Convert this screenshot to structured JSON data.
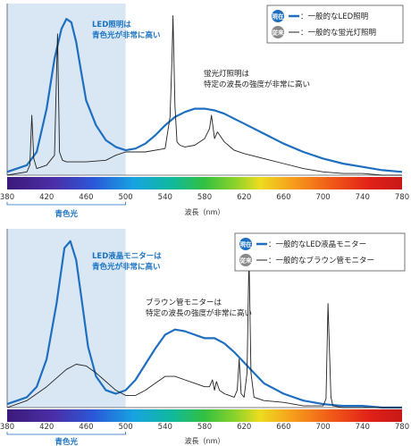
{
  "colors": {
    "led": "#1f6fc0",
    "other": "#222222",
    "band": "#d9e7f5",
    "badge_current": "#1f6fc0",
    "badge_prev": "#888888"
  },
  "chart_data": [
    {
      "type": "line",
      "xlabel": "波長（nm）",
      "xlim": [
        380,
        780
      ],
      "xticks": [
        380,
        420,
        460,
        500,
        540,
        580,
        620,
        660,
        700,
        740,
        780
      ],
      "band": {
        "from": 380,
        "to": 500,
        "label": "青色光"
      },
      "annotations": {
        "led": [
          "LED照明は",
          "青色光が非常に高い"
        ],
        "other": [
          "蛍光灯照明は",
          "特定の波長の強度が非常に高い"
        ]
      },
      "legend": [
        {
          "badge": "現在",
          "label": "：一般的なLED照明",
          "style": "blue-thick"
        },
        {
          "badge": "従来",
          "label": "：一般的な蛍光灯照明",
          "style": "black-thin"
        }
      ],
      "series": [
        {
          "name": "一般的なLED照明",
          "x": [
            380,
            400,
            410,
            420,
            428,
            435,
            440,
            445,
            450,
            455,
            460,
            470,
            480,
            490,
            500,
            510,
            520,
            530,
            540,
            550,
            560,
            570,
            580,
            590,
            600,
            610,
            620,
            640,
            660,
            680,
            700,
            720,
            740,
            760,
            780
          ],
          "y": [
            2,
            6,
            14,
            40,
            70,
            88,
            94,
            92,
            80,
            62,
            45,
            30,
            21,
            17,
            15,
            16,
            19,
            24,
            30,
            35,
            38,
            40,
            40,
            39,
            37,
            34,
            31,
            25,
            19,
            14,
            10,
            7,
            5,
            3,
            2
          ]
        },
        {
          "name": "一般的な蛍光灯照明",
          "x": [
            380,
            400,
            403,
            405,
            407,
            410,
            420,
            428,
            431,
            433,
            436,
            440,
            460,
            480,
            490,
            500,
            520,
            540,
            545,
            547,
            548,
            550,
            552,
            555,
            560,
            570,
            580,
            585,
            587,
            590,
            593,
            600,
            610,
            620,
            640,
            660,
            680,
            700,
            720,
            740,
            760,
            780
          ],
          "y": [
            0,
            2,
            6,
            36,
            10,
            4,
            6,
            12,
            85,
            14,
            9,
            8,
            8,
            9,
            12,
            14,
            14,
            16,
            35,
            70,
            96,
            42,
            20,
            18,
            17,
            18,
            22,
            28,
            36,
            22,
            26,
            20,
            15,
            13,
            10,
            7,
            4,
            2,
            1,
            1,
            0,
            0
          ]
        }
      ]
    },
    {
      "type": "line",
      "xlabel": "波長（nm）",
      "xlim": [
        380,
        780
      ],
      "xticks": [
        380,
        420,
        460,
        500,
        540,
        580,
        620,
        660,
        700,
        740,
        780
      ],
      "band": {
        "from": 380,
        "to": 500,
        "label": "青色光"
      },
      "annotations": {
        "led": [
          "LED液晶モニターは",
          "青色光が非常に高い"
        ],
        "other": [
          "ブラウン管モニターは",
          "特定の波長の強度が非常に高い"
        ]
      },
      "legend": [
        {
          "badge": "現在",
          "label": "：一般的なLED液晶モニター",
          "style": "blue-thick"
        },
        {
          "badge": "従来",
          "label": "：一般的なブラウン管モニター",
          "style": "black-thin"
        }
      ],
      "series": [
        {
          "name": "一般的なLED液晶モニター",
          "x": [
            380,
            400,
            410,
            420,
            430,
            438,
            444,
            450,
            456,
            462,
            470,
            480,
            490,
            500,
            510,
            520,
            530,
            540,
            550,
            560,
            570,
            580,
            590,
            600,
            610,
            620,
            630,
            640,
            660,
            680,
            700,
            720,
            740,
            760,
            780
          ],
          "y": [
            2,
            6,
            12,
            28,
            60,
            92,
            96,
            85,
            60,
            35,
            18,
            10,
            8,
            10,
            16,
            25,
            34,
            42,
            45,
            44,
            42,
            40,
            40,
            37,
            32,
            26,
            20,
            14,
            8,
            4,
            2,
            1,
            1,
            0,
            0
          ]
        },
        {
          "name": "一般的なブラウン管モニター",
          "x": [
            380,
            400,
            420,
            440,
            450,
            460,
            470,
            480,
            490,
            500,
            510,
            520,
            530,
            540,
            550,
            560,
            570,
            580,
            585,
            588,
            590,
            592,
            595,
            600,
            610,
            613,
            615,
            617,
            620,
            623,
            625,
            627,
            630,
            640,
            660,
            680,
            700,
            703,
            705,
            708,
            710,
            720,
            740,
            760,
            780
          ],
          "y": [
            0,
            4,
            12,
            22,
            25,
            24,
            20,
            15,
            10,
            7,
            7,
            10,
            14,
            18,
            18,
            16,
            14,
            12,
            12,
            16,
            10,
            15,
            10,
            8,
            6,
            10,
            28,
            8,
            6,
            20,
            88,
            20,
            6,
            4,
            3,
            1,
            1,
            5,
            60,
            6,
            1,
            0,
            0,
            0,
            0
          ]
        }
      ]
    }
  ]
}
